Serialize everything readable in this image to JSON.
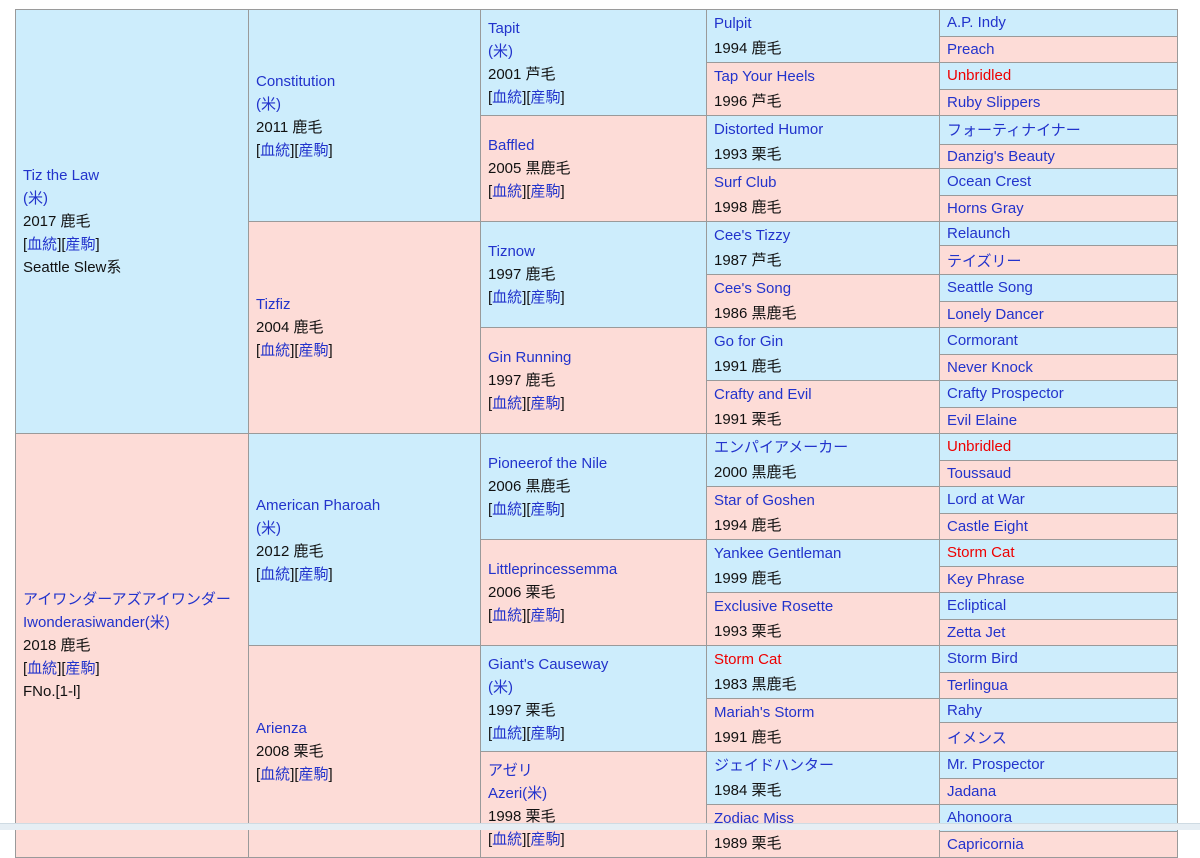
{
  "palette": {
    "male_bg": "#cdedfc",
    "female_bg": "#fddcd7",
    "link_blue": "#2233cc",
    "inbreed_red": "#ee0000",
    "border_gray": "#9a9a9a",
    "text_black": "#111111"
  },
  "labels": {
    "pedigree": "血統",
    "offspring": "産駒"
  },
  "pedigree": {
    "gen1": [
      {
        "sex": "m",
        "names": [
          "Tiz the Law",
          "(米)"
        ],
        "info": "2017 鹿毛",
        "links": true,
        "extra": "Seattle Slew系"
      },
      {
        "sex": "f",
        "names": [
          "アイワンダーアズアイワンダー",
          "Iwonderasiwander(米)"
        ],
        "info": "2018 鹿毛",
        "links": true,
        "extra": "FNo.[1-l]"
      }
    ],
    "gen2": [
      {
        "sex": "m",
        "names": [
          "Constitution",
          "(米)"
        ],
        "info": "2011 鹿毛",
        "links": true
      },
      {
        "sex": "f",
        "names": [
          "Tizfiz"
        ],
        "info": "2004 鹿毛",
        "links": true
      },
      {
        "sex": "m",
        "names": [
          "American Pharoah",
          "(米)"
        ],
        "info": "2012 鹿毛",
        "links": true
      },
      {
        "sex": "f",
        "names": [
          "Arienza"
        ],
        "info": "2008 栗毛",
        "links": true
      }
    ],
    "gen3": [
      {
        "sex": "m",
        "names": [
          "Tapit",
          "(米)"
        ],
        "info": "2001 芦毛",
        "links": true
      },
      {
        "sex": "f",
        "names": [
          "Baffled"
        ],
        "info": "2005 黒鹿毛",
        "links": true
      },
      {
        "sex": "m",
        "names": [
          "Tiznow"
        ],
        "info": "1997 鹿毛",
        "links": true
      },
      {
        "sex": "f",
        "names": [
          "Gin Running"
        ],
        "info": "1997 鹿毛",
        "links": true
      },
      {
        "sex": "m",
        "names": [
          "Pioneerof the Nile"
        ],
        "info": "2006 黒鹿毛",
        "links": true
      },
      {
        "sex": "f",
        "names": [
          "Littleprincessemma"
        ],
        "info": "2006 栗毛",
        "links": true
      },
      {
        "sex": "m",
        "names": [
          "Giant's Causeway",
          "(米)"
        ],
        "info": "1997 栗毛",
        "links": true
      },
      {
        "sex": "f",
        "names": [
          "アゼリ",
          "Azeri(米)"
        ],
        "info": "1998 栗毛",
        "links": true
      }
    ],
    "gen4": [
      {
        "sex": "m",
        "names": [
          "Pulpit"
        ],
        "info": "1994 鹿毛"
      },
      {
        "sex": "f",
        "names": [
          "Tap Your Heels"
        ],
        "info": "1996 芦毛"
      },
      {
        "sex": "m",
        "names": [
          "Distorted Humor"
        ],
        "info": "1993 栗毛"
      },
      {
        "sex": "f",
        "names": [
          "Surf Club"
        ],
        "info": "1998 鹿毛"
      },
      {
        "sex": "m",
        "names": [
          "Cee's Tizzy"
        ],
        "info": "1987 芦毛"
      },
      {
        "sex": "f",
        "names": [
          "Cee's Song"
        ],
        "info": "1986 黒鹿毛"
      },
      {
        "sex": "m",
        "names": [
          "Go for Gin"
        ],
        "info": "1991 鹿毛"
      },
      {
        "sex": "f",
        "names": [
          "Crafty and Evil"
        ],
        "info": "1991 栗毛"
      },
      {
        "sex": "m",
        "names": [
          "エンパイアメーカー"
        ],
        "info": "2000 黒鹿毛"
      },
      {
        "sex": "f",
        "names": [
          "Star of Goshen"
        ],
        "info": "1994 鹿毛"
      },
      {
        "sex": "m",
        "names": [
          "Yankee Gentleman"
        ],
        "info": "1999 鹿毛"
      },
      {
        "sex": "f",
        "names": [
          "Exclusive Rosette"
        ],
        "info": "1993 栗毛"
      },
      {
        "sex": "m",
        "names": [
          "Storm Cat"
        ],
        "info": "1983 黒鹿毛",
        "red": true
      },
      {
        "sex": "f",
        "names": [
          "Mariah's Storm"
        ],
        "info": "1991 鹿毛"
      },
      {
        "sex": "m",
        "names": [
          "ジェイドハンター"
        ],
        "info": "1984 栗毛"
      },
      {
        "sex": "f",
        "names": [
          "Zodiac Miss"
        ],
        "info": "1989 栗毛"
      }
    ],
    "gen5": [
      {
        "sex": "m",
        "name": "A.P. Indy"
      },
      {
        "sex": "f",
        "name": "Preach"
      },
      {
        "sex": "m",
        "name": "Unbridled",
        "red": true
      },
      {
        "sex": "f",
        "name": "Ruby Slippers"
      },
      {
        "sex": "m",
        "name": "フォーティナイナー"
      },
      {
        "sex": "f",
        "name": "Danzig's Beauty"
      },
      {
        "sex": "m",
        "name": "Ocean Crest"
      },
      {
        "sex": "f",
        "name": "Horns Gray"
      },
      {
        "sex": "m",
        "name": "Relaunch"
      },
      {
        "sex": "f",
        "name": "テイズリー"
      },
      {
        "sex": "m",
        "name": "Seattle Song"
      },
      {
        "sex": "f",
        "name": "Lonely Dancer"
      },
      {
        "sex": "m",
        "name": "Cormorant"
      },
      {
        "sex": "f",
        "name": "Never Knock"
      },
      {
        "sex": "m",
        "name": "Crafty Prospector"
      },
      {
        "sex": "f",
        "name": "Evil Elaine"
      },
      {
        "sex": "m",
        "name": "Unbridled",
        "red": true
      },
      {
        "sex": "f",
        "name": "Toussaud"
      },
      {
        "sex": "m",
        "name": "Lord at War"
      },
      {
        "sex": "f",
        "name": "Castle Eight"
      },
      {
        "sex": "m",
        "name": "Storm Cat",
        "red": true
      },
      {
        "sex": "f",
        "name": "Key Phrase"
      },
      {
        "sex": "m",
        "name": "Ecliptical"
      },
      {
        "sex": "f",
        "name": "Zetta Jet"
      },
      {
        "sex": "m",
        "name": "Storm Bird"
      },
      {
        "sex": "f",
        "name": "Terlingua"
      },
      {
        "sex": "m",
        "name": "Rahy"
      },
      {
        "sex": "f",
        "name": "イメンス"
      },
      {
        "sex": "m",
        "name": "Mr. Prospector"
      },
      {
        "sex": "f",
        "name": "Jadana"
      },
      {
        "sex": "m",
        "name": "Ahonoora"
      },
      {
        "sex": "f",
        "name": "Capricornia"
      }
    ]
  }
}
